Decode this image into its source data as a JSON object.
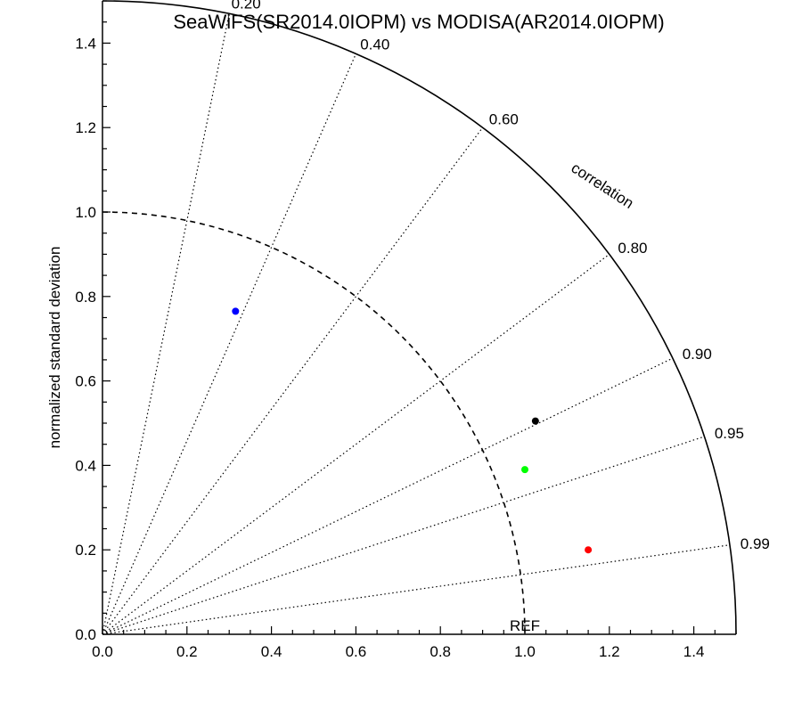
{
  "chart_data": {
    "type": "scatter",
    "subtype": "taylor-diagram",
    "title": "SeaWiFS(SR2014.0IOPM) vs MODISA(AR2014.0IOPM)",
    "xlabel": "",
    "ylabel": "normalized standard deviation",
    "arc_label": "correlation",
    "reference_label": "REF",
    "xlim": [
      0,
      1.5
    ],
    "ylim": [
      0,
      1.5
    ],
    "x_ticks": [
      {
        "value": 0.0,
        "label": "0.0"
      },
      {
        "value": 0.2,
        "label": "0.2"
      },
      {
        "value": 0.4,
        "label": "0.4"
      },
      {
        "value": 0.6,
        "label": "0.6"
      },
      {
        "value": 0.8,
        "label": "0.8"
      },
      {
        "value": 1.0,
        "label": "1.0"
      },
      {
        "value": 1.2,
        "label": "1.2"
      },
      {
        "value": 1.4,
        "label": "1.4"
      }
    ],
    "y_ticks": [
      {
        "value": 0.0,
        "label": "0.0"
      },
      {
        "value": 0.2,
        "label": "0.2"
      },
      {
        "value": 0.4,
        "label": "0.4"
      },
      {
        "value": 0.6,
        "label": "0.6"
      },
      {
        "value": 0.8,
        "label": "0.8"
      },
      {
        "value": 1.0,
        "label": "1.0"
      },
      {
        "value": 1.2,
        "label": "1.2"
      },
      {
        "value": 1.4,
        "label": "1.4"
      }
    ],
    "correlation_lines": [
      {
        "value": 0.2,
        "label": "0.20"
      },
      {
        "value": 0.4,
        "label": "0.40"
      },
      {
        "value": 0.6,
        "label": "0.60"
      },
      {
        "value": 0.8,
        "label": "0.80"
      },
      {
        "value": 0.9,
        "label": "0.90"
      },
      {
        "value": 0.95,
        "label": "0.95"
      },
      {
        "value": 0.99,
        "label": "0.99"
      }
    ],
    "max_stddev": 1.5,
    "reference_stddev": 1.0,
    "grid": false,
    "legend": "none",
    "points": [
      {
        "x": 0.315,
        "y": 0.765,
        "color": "#0000ff"
      },
      {
        "x": 1.025,
        "y": 0.505,
        "color": "#000000"
      },
      {
        "x": 1.0,
        "y": 0.39,
        "color": "#00ff00"
      },
      {
        "x": 1.15,
        "y": 0.2,
        "color": "#ff0000"
      }
    ]
  }
}
